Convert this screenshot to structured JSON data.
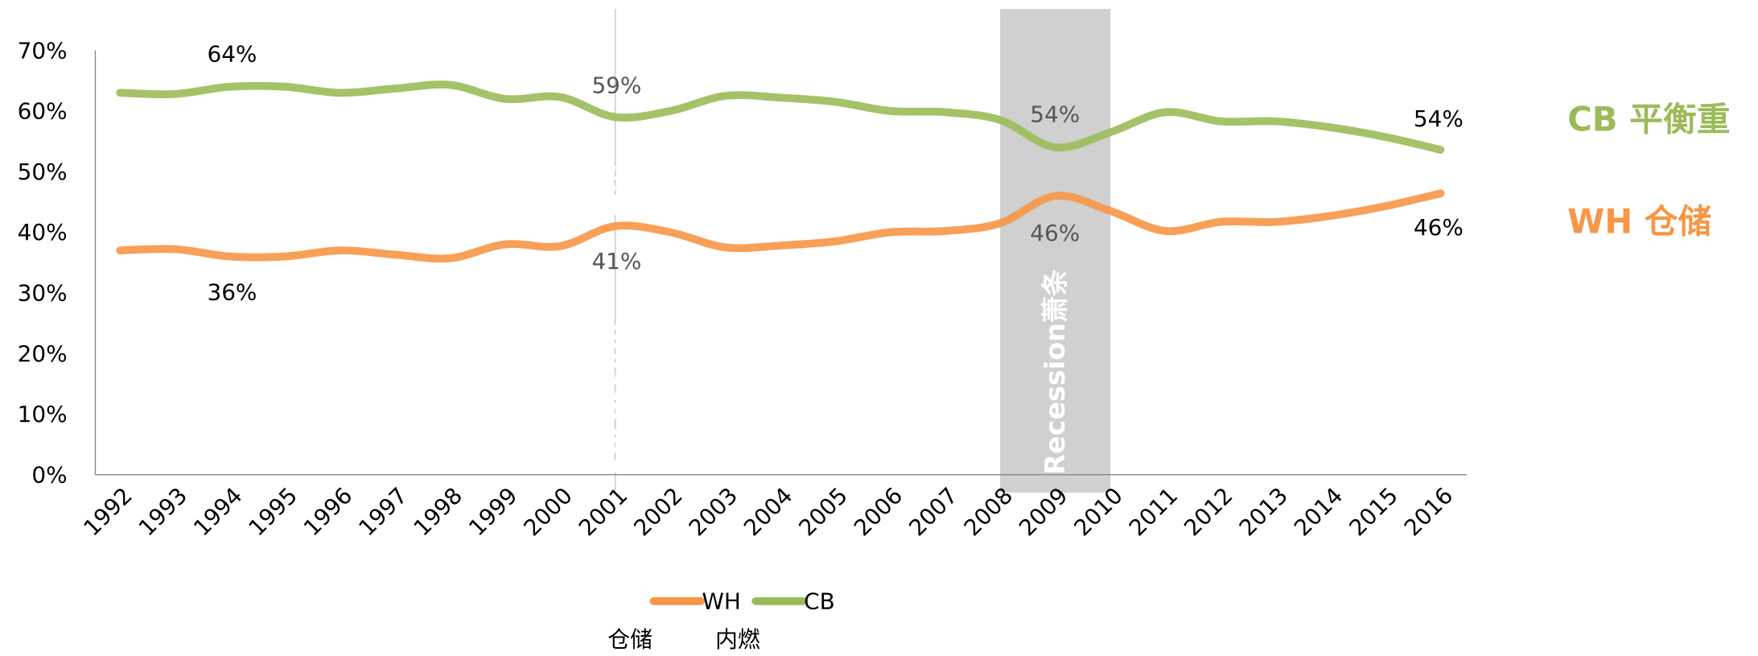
{
  "chart_data": {
    "type": "line",
    "categories": [
      "1992",
      "1993",
      "1994",
      "1995",
      "1996",
      "1997",
      "1998",
      "1999",
      "2000",
      "2001",
      "2002",
      "2003",
      "2004",
      "2005",
      "2006",
      "2007",
      "2008",
      "2009",
      "2010",
      "2011",
      "2012",
      "2013",
      "2014",
      "2015",
      "2016"
    ],
    "series": [
      {
        "name": "WH",
        "color": "#f79646",
        "values": [
          37,
          37.2,
          36,
          36,
          37,
          36.3,
          35.7,
          38,
          37.7,
          41,
          40,
          37.5,
          37.8,
          38.5,
          40,
          40.2,
          41.5,
          46,
          43.5,
          40.2,
          41.7,
          41.7,
          42.7,
          44.3,
          46.4
        ]
      },
      {
        "name": "CB",
        "color": "#9bbb59",
        "values": [
          63,
          62.8,
          64,
          64,
          63,
          63.7,
          64.3,
          62,
          62.3,
          59,
          60,
          62.5,
          62.2,
          61.5,
          60,
          59.8,
          58.5,
          54,
          56.5,
          59.8,
          58.3,
          58.3,
          57.3,
          55.7,
          53.6
        ]
      }
    ],
    "ylim": [
      0,
      70
    ],
    "yticks": [
      {
        "value": 0,
        "label": "0%"
      },
      {
        "value": 10,
        "label": "10%"
      },
      {
        "value": 20,
        "label": "20%"
      },
      {
        "value": 30,
        "label": "30%"
      },
      {
        "value": 40,
        "label": "40%"
      },
      {
        "value": 50,
        "label": "50%"
      },
      {
        "value": 60,
        "label": "60%"
      },
      {
        "value": 70,
        "label": "70%"
      }
    ],
    "annotations": [
      "64%",
      "36%",
      "59%",
      "41%",
      "54%",
      "46%",
      "54%",
      "46%"
    ],
    "recessions": [
      {
        "start": "2001",
        "end": "2001",
        "labels": [
          "Recession",
          "萧条"
        ]
      },
      {
        "start": "2008",
        "end": "2010",
        "labels": [
          "Recession萧条"
        ]
      }
    ],
    "series_labels": [
      "CB 平衡重",
      "WH 仓储"
    ],
    "legend_notes": [
      "仓储",
      "内燃"
    ]
  }
}
